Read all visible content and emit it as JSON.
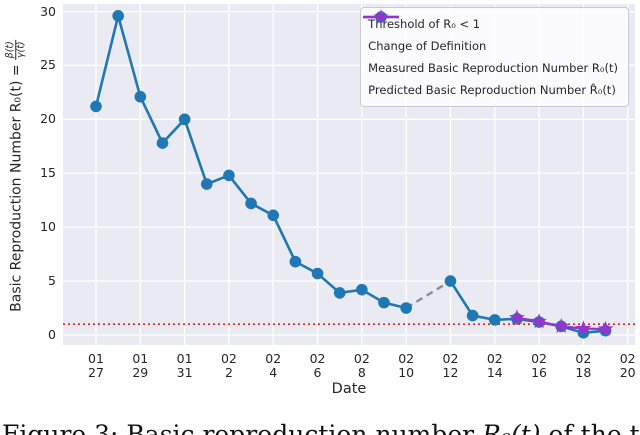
{
  "caption": {
    "pre": "Figure 3: Basic reproduction number ",
    "math": "R₀(t)",
    "post": " of the ti"
  },
  "chart_data": {
    "type": "line",
    "title": "",
    "xlabel": "Date",
    "ylabel": "Basic Reproduction Number R₀(t) = β(t)/γ(t)",
    "ylabel_parts": {
      "prefix": "Basic Reproduction Number R₀(t) =",
      "frac_numerator": "β(t)",
      "frac_denominator": "γ(t)"
    },
    "grid": true,
    "background": "#eaeaf2",
    "gridline_color": "#ffffff",
    "ylim": [
      -0.93,
      30.7
    ],
    "xlim_days": [
      -1.49,
      24.33
    ],
    "y_ticks": [
      0,
      5,
      10,
      15,
      20,
      25,
      30
    ],
    "x_ticks": [
      {
        "month": "01",
        "day": "27"
      },
      {
        "month": "01",
        "day": "29"
      },
      {
        "month": "01",
        "day": "31"
      },
      {
        "month": "02",
        "day": "2"
      },
      {
        "month": "02",
        "day": "4"
      },
      {
        "month": "02",
        "day": "6"
      },
      {
        "month": "02",
        "day": "8"
      },
      {
        "month": "02",
        "day": "10"
      },
      {
        "month": "02",
        "day": "12"
      },
      {
        "month": "02",
        "day": "14"
      },
      {
        "month": "02",
        "day": "16"
      },
      {
        "month": "02",
        "day": "18"
      },
      {
        "month": "02",
        "day": "20"
      }
    ],
    "threshold_line": {
      "label": "Threshold of R₀ < 1",
      "value": 1.0,
      "color": "#d62728",
      "style": "dotted"
    },
    "change_of_definition_line": {
      "label": "Change of Definition",
      "color": "#8c8c8c",
      "style": "dashed",
      "dates": [
        "02/10",
        "02/12"
      ],
      "values": [
        2.5,
        5.0
      ]
    },
    "series": [
      {
        "name": "Measured Basic Reproduction Number R₀(t)",
        "color": "#1f77b4",
        "marker": "circle",
        "style": "solid",
        "segments": [
          {
            "dates": [
              "01/27",
              "01/28",
              "01/29",
              "01/30",
              "01/31",
              "02/01",
              "02/02",
              "02/03",
              "02/04",
              "02/05",
              "02/06",
              "02/07",
              "02/08",
              "02/09",
              "02/10"
            ],
            "values": [
              21.2,
              29.6,
              22.1,
              17.8,
              20.0,
              14.0,
              14.8,
              12.2,
              11.1,
              6.8,
              5.7,
              3.9,
              4.2,
              3.0,
              2.5
            ]
          },
          {
            "dates": [
              "02/12",
              "02/13",
              "02/14",
              "02/15",
              "02/16",
              "02/17",
              "02/18",
              "02/19"
            ],
            "values": [
              5.0,
              1.8,
              1.4,
              1.5,
              1.2,
              0.8,
              0.2,
              0.4
            ]
          }
        ]
      },
      {
        "name": "Predicted Basic Reproduction Number R̂₀(t)",
        "color": "#9932cc",
        "marker": "star",
        "style": "solid",
        "segments": [
          {
            "dates": [
              "02/15",
              "02/16",
              "02/17",
              "02/18",
              "02/19"
            ],
            "values": [
              1.6,
              1.25,
              0.8,
              0.6,
              0.55
            ]
          }
        ]
      }
    ],
    "legend_position": "upper right"
  }
}
